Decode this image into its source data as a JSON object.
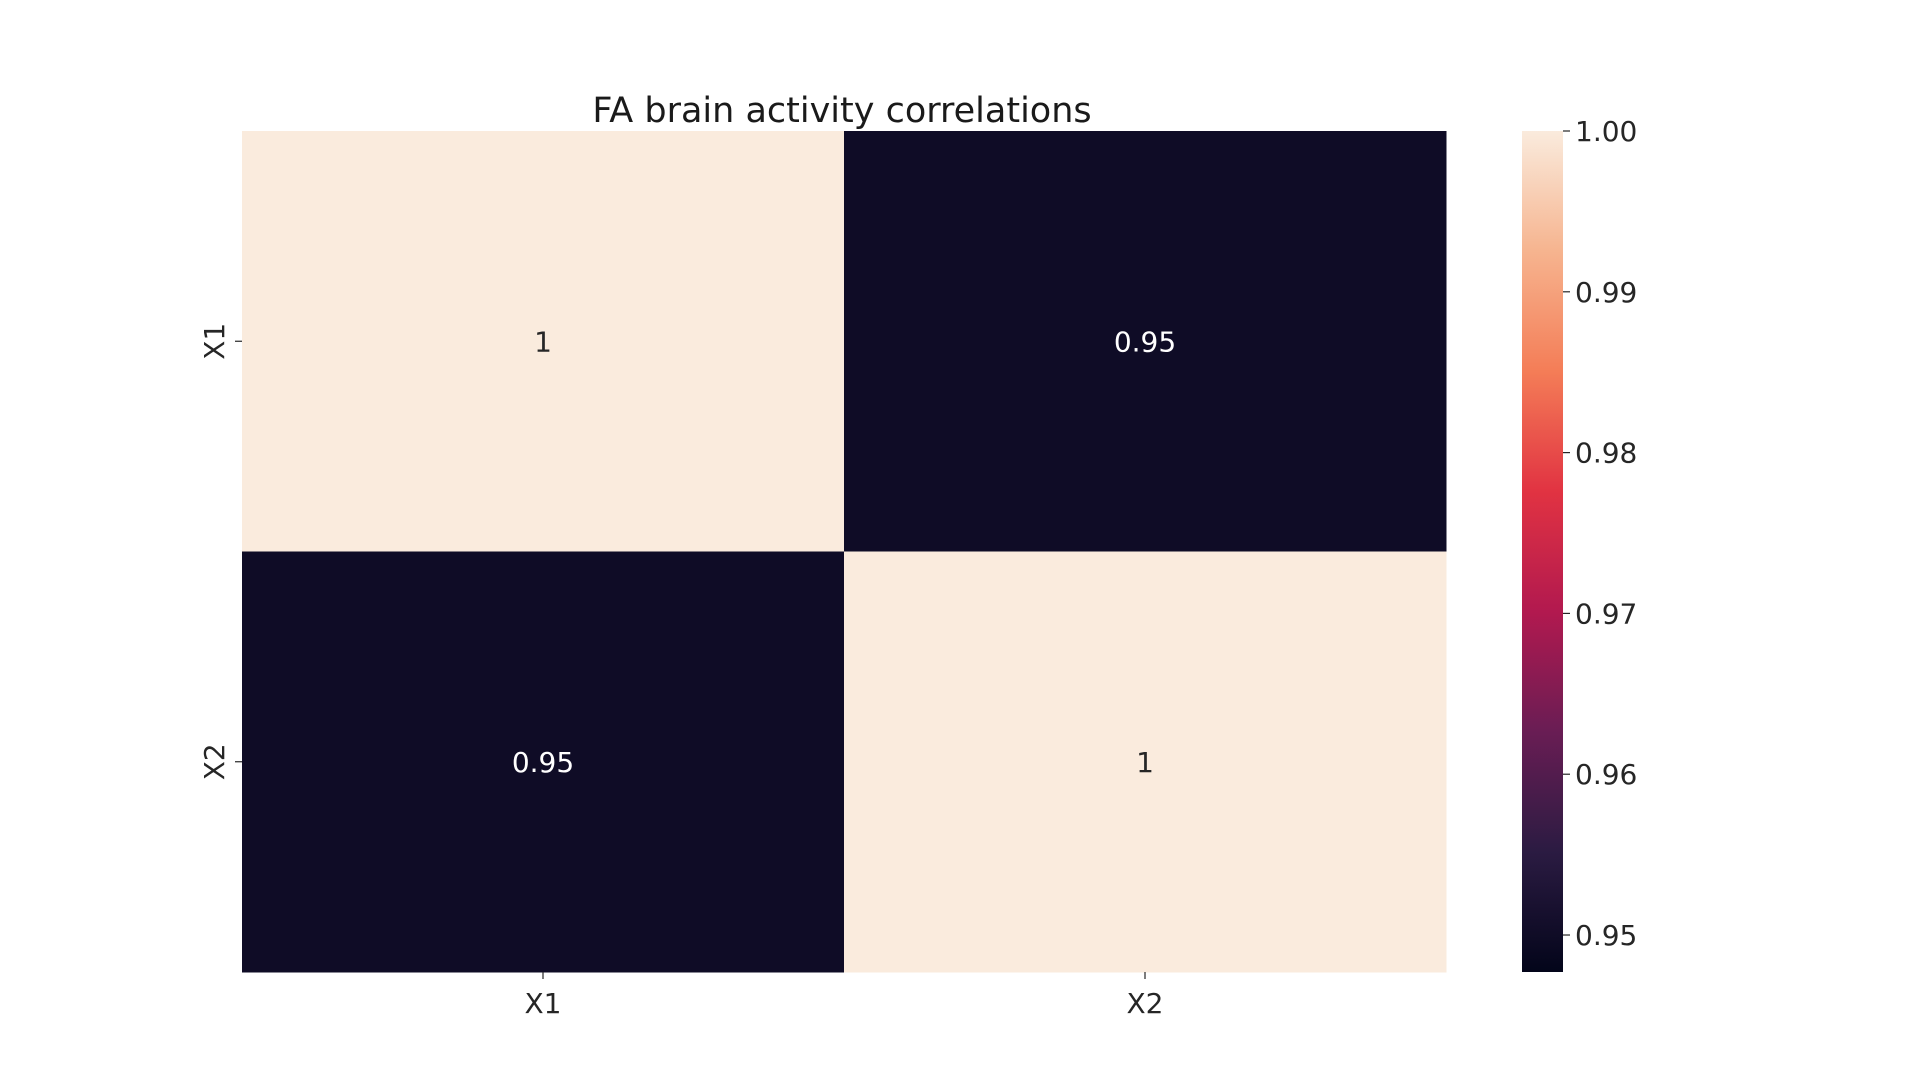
{
  "chart_data": {
    "type": "heatmap",
    "title": "FA brain activity correlations",
    "xlabel": "",
    "ylabel": "",
    "x_categories": [
      "X1",
      "X2"
    ],
    "y_categories": [
      "X1",
      "X2"
    ],
    "values": [
      [
        1.0,
        0.95
      ],
      [
        0.95,
        1.0
      ]
    ],
    "cell_labels": [
      [
        "1",
        "0.95"
      ],
      [
        "0.95",
        "1"
      ]
    ],
    "colorbar": {
      "range": [
        0.9477,
        1.0
      ],
      "ticks": [
        0.95,
        0.96,
        0.97,
        0.98,
        0.99,
        1.0
      ],
      "tick_labels": [
        "0.95",
        "0.96",
        "0.97",
        "0.98",
        "0.99",
        "1.00"
      ],
      "placement": "right"
    },
    "colormap": {
      "name": "rocket",
      "stops": [
        "#03051a",
        "#2b1b42",
        "#691d54",
        "#b2194f",
        "#e13342",
        "#f47d57",
        "#f6b48f",
        "#faebdd"
      ]
    },
    "grid": false
  }
}
